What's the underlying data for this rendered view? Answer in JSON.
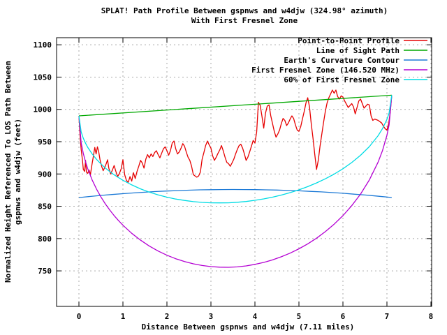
{
  "title": {
    "line1": "SPLAT! Path Profile Between gspnws and w4djw (324.98° azimuth)",
    "line2": "With First Fresnel Zone"
  },
  "chart_data": {
    "type": "line",
    "title": "SPLAT! Path Profile Between gspnws and w4djw (324.98° azimuth) With First Fresnel Zone",
    "xlabel": "Distance Between gspnws and w4djw (7.11 miles)",
    "ylabel": "Normalized Height Referenced To LOS Path Between gspnws and w4djw (feet)",
    "ylabel_line1": "Normalized Height Referenced To LOS Path Between",
    "ylabel_line2": "gspnws and w4djw (feet)",
    "xlim": [
      -0.508,
      8.016
    ],
    "ylim": [
      695,
      1111
    ],
    "xticks": [
      0,
      1,
      2,
      3,
      4,
      5,
      6,
      7,
      8
    ],
    "yticks": [
      750,
      800,
      850,
      900,
      950,
      1000,
      1050,
      1100
    ],
    "grid": true,
    "grid_color": "#a9a9a9",
    "legend_position": "top-right-inside",
    "path_distance_miles": 7.11,
    "frequency_mhz": 146.52,
    "series": [
      {
        "name": "Point-to-Point Profile",
        "color": "#e60000",
        "points": [
          [
            0,
            990
          ],
          [
            0.03,
            955
          ],
          [
            0.05,
            938
          ],
          [
            0.08,
            922
          ],
          [
            0.1,
            907
          ],
          [
            0.13,
            904
          ],
          [
            0.15,
            921
          ],
          [
            0.17,
            903
          ],
          [
            0.2,
            901
          ],
          [
            0.23,
            906
          ],
          [
            0.26,
            899
          ],
          [
            0.3,
            916
          ],
          [
            0.33,
            928
          ],
          [
            0.36,
            941
          ],
          [
            0.39,
            931
          ],
          [
            0.42,
            942
          ],
          [
            0.45,
            934
          ],
          [
            0.48,
            922
          ],
          [
            0.52,
            911
          ],
          [
            0.55,
            905
          ],
          [
            0.58,
            909
          ],
          [
            0.62,
            916
          ],
          [
            0.65,
            922
          ],
          [
            0.68,
            909
          ],
          [
            0.72,
            900
          ],
          [
            0.76,
            906
          ],
          [
            0.8,
            913
          ],
          [
            0.84,
            904
          ],
          [
            0.88,
            896
          ],
          [
            0.92,
            901
          ],
          [
            0.96,
            908
          ],
          [
            1.0,
            922
          ],
          [
            1.04,
            899
          ],
          [
            1.08,
            890
          ],
          [
            1.12,
            887
          ],
          [
            1.16,
            896
          ],
          [
            1.2,
            889
          ],
          [
            1.24,
            902
          ],
          [
            1.28,
            893
          ],
          [
            1.32,
            904
          ],
          [
            1.36,
            912
          ],
          [
            1.4,
            921
          ],
          [
            1.44,
            917
          ],
          [
            1.48,
            909
          ],
          [
            1.52,
            923
          ],
          [
            1.56,
            930
          ],
          [
            1.6,
            925
          ],
          [
            1.64,
            931
          ],
          [
            1.68,
            927
          ],
          [
            1.72,
            933
          ],
          [
            1.76,
            936
          ],
          [
            1.8,
            930
          ],
          [
            1.84,
            925
          ],
          [
            1.88,
            932
          ],
          [
            1.92,
            939
          ],
          [
            1.96,
            942
          ],
          [
            2.0,
            936
          ],
          [
            2.04,
            929
          ],
          [
            2.08,
            936
          ],
          [
            2.12,
            948
          ],
          [
            2.16,
            951
          ],
          [
            2.2,
            939
          ],
          [
            2.24,
            931
          ],
          [
            2.28,
            934
          ],
          [
            2.32,
            940
          ],
          [
            2.36,
            947
          ],
          [
            2.4,
            943
          ],
          [
            2.44,
            934
          ],
          [
            2.48,
            926
          ],
          [
            2.52,
            921
          ],
          [
            2.56,
            912
          ],
          [
            2.6,
            899
          ],
          [
            2.64,
            897
          ],
          [
            2.68,
            895
          ],
          [
            2.72,
            897
          ],
          [
            2.76,
            903
          ],
          [
            2.8,
            923
          ],
          [
            2.84,
            933
          ],
          [
            2.88,
            944
          ],
          [
            2.92,
            951
          ],
          [
            2.96,
            945
          ],
          [
            3.0,
            940
          ],
          [
            3.04,
            928
          ],
          [
            3.08,
            921
          ],
          [
            3.12,
            926
          ],
          [
            3.16,
            932
          ],
          [
            3.2,
            937
          ],
          [
            3.24,
            944
          ],
          [
            3.28,
            936
          ],
          [
            3.32,
            926
          ],
          [
            3.36,
            918
          ],
          [
            3.4,
            916
          ],
          [
            3.44,
            912
          ],
          [
            3.48,
            917
          ],
          [
            3.52,
            923
          ],
          [
            3.56,
            931
          ],
          [
            3.6,
            938
          ],
          [
            3.64,
            944
          ],
          [
            3.68,
            946
          ],
          [
            3.72,
            940
          ],
          [
            3.76,
            931
          ],
          [
            3.8,
            921
          ],
          [
            3.84,
            926
          ],
          [
            3.88,
            934
          ],
          [
            3.92,
            943
          ],
          [
            3.96,
            952
          ],
          [
            4.0,
            948
          ],
          [
            4.04,
            965
          ],
          [
            4.08,
            1011
          ],
          [
            4.12,
            1006
          ],
          [
            4.16,
            989
          ],
          [
            4.2,
            971
          ],
          [
            4.24,
            994
          ],
          [
            4.28,
            1005
          ],
          [
            4.32,
            1007
          ],
          [
            4.36,
            990
          ],
          [
            4.4,
            978
          ],
          [
            4.44,
            966
          ],
          [
            4.48,
            957
          ],
          [
            4.52,
            962
          ],
          [
            4.56,
            968
          ],
          [
            4.6,
            978
          ],
          [
            4.64,
            986
          ],
          [
            4.68,
            983
          ],
          [
            4.72,
            975
          ],
          [
            4.76,
            979
          ],
          [
            4.8,
            985
          ],
          [
            4.84,
            990
          ],
          [
            4.88,
            986
          ],
          [
            4.92,
            976
          ],
          [
            4.96,
            968
          ],
          [
            5.0,
            966
          ],
          [
            5.04,
            973
          ],
          [
            5.08,
            985
          ],
          [
            5.12,
            997
          ],
          [
            5.16,
            1010
          ],
          [
            5.2,
            1018
          ],
          [
            5.24,
            1004
          ],
          [
            5.28,
            978
          ],
          [
            5.32,
            955
          ],
          [
            5.36,
            930
          ],
          [
            5.4,
            907
          ],
          [
            5.44,
            921
          ],
          [
            5.48,
            943
          ],
          [
            5.52,
            962
          ],
          [
            5.56,
            980
          ],
          [
            5.6,
            997
          ],
          [
            5.64,
            1010
          ],
          [
            5.68,
            1018
          ],
          [
            5.72,
            1024
          ],
          [
            5.76,
            1030
          ],
          [
            5.8,
            1025
          ],
          [
            5.84,
            1030
          ],
          [
            5.88,
            1020
          ],
          [
            5.92,
            1016
          ],
          [
            5.96,
            1021
          ],
          [
            6.0,
            1019
          ],
          [
            6.04,
            1013
          ],
          [
            6.08,
            1008
          ],
          [
            6.12,
            1003
          ],
          [
            6.16,
            1006
          ],
          [
            6.2,
            1009
          ],
          [
            6.24,
            1004
          ],
          [
            6.28,
            993
          ],
          [
            6.32,
            1003
          ],
          [
            6.36,
            1013
          ],
          [
            6.4,
            1016
          ],
          [
            6.44,
            1009
          ],
          [
            6.48,
            1002
          ],
          [
            6.52,
            1005
          ],
          [
            6.56,
            1008
          ],
          [
            6.6,
            1007
          ],
          [
            6.64,
            990
          ],
          [
            6.68,
            983
          ],
          [
            6.72,
            985
          ],
          [
            6.76,
            984
          ],
          [
            6.8,
            983
          ],
          [
            6.84,
            981
          ],
          [
            6.88,
            979
          ],
          [
            6.92,
            974
          ],
          [
            6.96,
            970
          ],
          [
            7.0,
            968
          ],
          [
            7.04,
            978
          ],
          [
            7.08,
            998
          ],
          [
            7.11,
            1022
          ]
        ]
      },
      {
        "name": "Line of Sight Path",
        "color": "#00a800",
        "points": [
          [
            0,
            990
          ],
          [
            7.11,
            1022
          ]
        ]
      },
      {
        "name": "Earth's Curvature Contour",
        "color": "#1b79d6",
        "points": [
          [
            0,
            863.5
          ],
          [
            0.25,
            865.2
          ],
          [
            0.5,
            866.8
          ],
          [
            0.75,
            868.2
          ],
          [
            1.0,
            869.5
          ],
          [
            1.25,
            870.7
          ],
          [
            1.5,
            871.8
          ],
          [
            1.75,
            872.8
          ],
          [
            2.0,
            873.6
          ],
          [
            2.25,
            874.3
          ],
          [
            2.5,
            874.9
          ],
          [
            2.75,
            875.4
          ],
          [
            3.0,
            875.7
          ],
          [
            3.25,
            875.9
          ],
          [
            3.5,
            876.0
          ],
          [
            3.75,
            875.9
          ],
          [
            4.0,
            875.8
          ],
          [
            4.25,
            875.5
          ],
          [
            4.5,
            875.1
          ],
          [
            4.75,
            874.5
          ],
          [
            5.0,
            873.9
          ],
          [
            5.25,
            873.1
          ],
          [
            5.5,
            872.3
          ],
          [
            5.75,
            871.2
          ],
          [
            6.0,
            870.1
          ],
          [
            6.25,
            868.8
          ],
          [
            6.5,
            867.4
          ],
          [
            6.75,
            865.9
          ],
          [
            7.0,
            864.3
          ],
          [
            7.11,
            863.5
          ]
        ]
      },
      {
        "name": "First Fresnel Zone (146.520 MHz)",
        "color": "#b400d3",
        "points": [
          [
            0,
            990
          ],
          [
            0.05,
            948.4
          ],
          [
            0.1,
            931.6
          ],
          [
            0.15,
            918.8
          ],
          [
            0.2,
            908.2
          ],
          [
            0.3,
            890.8
          ],
          [
            0.4,
            876.6
          ],
          [
            0.5,
            864.4
          ],
          [
            0.6,
            853.7
          ],
          [
            0.7,
            844.2
          ],
          [
            0.8,
            835.6
          ],
          [
            0.9,
            827.8
          ],
          [
            1.0,
            820.7
          ],
          [
            1.2,
            808.1
          ],
          [
            1.4,
            797.5
          ],
          [
            1.6,
            788.4
          ],
          [
            1.8,
            780.7
          ],
          [
            2.0,
            774.2
          ],
          [
            2.2,
            768.8
          ],
          [
            2.4,
            764.4
          ],
          [
            2.6,
            760.9
          ],
          [
            2.8,
            758.3
          ],
          [
            3.0,
            756.6
          ],
          [
            3.2,
            755.7
          ],
          [
            3.4,
            755.5
          ],
          [
            3.6,
            756.2
          ],
          [
            3.8,
            757.7
          ],
          [
            4.0,
            760.0
          ],
          [
            4.2,
            763.1
          ],
          [
            4.4,
            767.0
          ],
          [
            4.6,
            771.8
          ],
          [
            4.8,
            777.4
          ],
          [
            5.0,
            784.1
          ],
          [
            5.2,
            791.8
          ],
          [
            5.4,
            800.6
          ],
          [
            5.6,
            810.7
          ],
          [
            5.8,
            822.3
          ],
          [
            6.0,
            835.5
          ],
          [
            6.2,
            850.9
          ],
          [
            6.4,
            868.9
          ],
          [
            6.6,
            890.7
          ],
          [
            6.8,
            918.5
          ],
          [
            6.9,
            936.4
          ],
          [
            7.0,
            959.8
          ],
          [
            7.05,
            976.0
          ],
          [
            7.11,
            1022
          ]
        ]
      },
      {
        "name": "60% of First Fresnel Zone",
        "color": "#00dce4",
        "points": [
          [
            0,
            990
          ],
          [
            0.05,
            965.1
          ],
          [
            0.1,
            955.2
          ],
          [
            0.15,
            947.5
          ],
          [
            0.2,
            941.3
          ],
          [
            0.3,
            931.1
          ],
          [
            0.4,
            922.7
          ],
          [
            0.5,
            915.6
          ],
          [
            0.6,
            909.3
          ],
          [
            0.7,
            903.8
          ],
          [
            0.8,
            898.8
          ],
          [
            0.9,
            894.4
          ],
          [
            1.0,
            890.2
          ],
          [
            1.2,
            883.1
          ],
          [
            1.4,
            877.0
          ],
          [
            1.6,
            871.9
          ],
          [
            1.8,
            867.7
          ],
          [
            2.0,
            864.1
          ],
          [
            2.2,
            861.2
          ],
          [
            2.4,
            859.0
          ],
          [
            2.6,
            857.2
          ],
          [
            2.8,
            856.0
          ],
          [
            3.0,
            855.4
          ],
          [
            3.2,
            855.2
          ],
          [
            3.4,
            855.4
          ],
          [
            3.6,
            856.2
          ],
          [
            3.8,
            857.4
          ],
          [
            4.0,
            859.2
          ],
          [
            4.2,
            861.4
          ],
          [
            4.4,
            864.1
          ],
          [
            4.6,
            867.3
          ],
          [
            4.8,
            871.1
          ],
          [
            5.0,
            875.5
          ],
          [
            5.2,
            880.4
          ],
          [
            5.4,
            886.1
          ],
          [
            5.6,
            892.5
          ],
          [
            5.8,
            899.8
          ],
          [
            6.0,
            908.1
          ],
          [
            6.2,
            917.7
          ],
          [
            6.4,
            928.9
          ],
          [
            6.6,
            942.3
          ],
          [
            6.8,
            959.3
          ],
          [
            6.9,
            970.3
          ],
          [
            7.0,
            984.5
          ],
          [
            7.05,
            994.3
          ],
          [
            7.11,
            1022
          ]
        ]
      }
    ]
  }
}
